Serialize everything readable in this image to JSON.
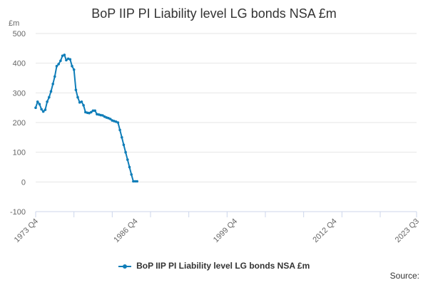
{
  "chart_data": {
    "type": "line",
    "title": "BoP IIP PI Liability level LG bonds NSA £m",
    "ylabel": "£m",
    "ylim": [
      -100,
      500
    ],
    "yticks": [
      "500",
      "400",
      "300",
      "200",
      "100",
      "0",
      "-100"
    ],
    "xticks": [
      "1973 Q4",
      "1986 Q4",
      "1999 Q4",
      "2012 Q4",
      "2023 Q3"
    ],
    "grid": true,
    "legend_position": "bottom",
    "series": [
      {
        "name": "BoP IIP PI Liability level LG bonds NSA £m",
        "color": "#0f7db8",
        "x": [
          "1973 Q4",
          "1974 Q1",
          "1974 Q2",
          "1974 Q3",
          "1974 Q4",
          "1975 Q1",
          "1975 Q2",
          "1975 Q3",
          "1975 Q4",
          "1976 Q1",
          "1976 Q2",
          "1976 Q3",
          "1976 Q4",
          "1977 Q1",
          "1977 Q2",
          "1977 Q3",
          "1977 Q4",
          "1978 Q1",
          "1978 Q2",
          "1978 Q3",
          "1978 Q4",
          "1979 Q1",
          "1979 Q2",
          "1979 Q3",
          "1979 Q4",
          "1980 Q1",
          "1980 Q2",
          "1980 Q3",
          "1980 Q4",
          "1981 Q1",
          "1981 Q2",
          "1981 Q3",
          "1981 Q4",
          "1982 Q1",
          "1982 Q2",
          "1982 Q3",
          "1982 Q4",
          "1983 Q1",
          "1983 Q2",
          "1983 Q3",
          "1983 Q4",
          "1984 Q1",
          "1984 Q2",
          "1984 Q3",
          "1984 Q4",
          "1985 Q1",
          "1985 Q2",
          "1985 Q3",
          "1985 Q4",
          "1986 Q1",
          "1986 Q2",
          "1986 Q3",
          "1986 Q4",
          "1987 Q1"
        ],
        "values": [
          250,
          270,
          262,
          245,
          237,
          243,
          270,
          285,
          305,
          330,
          355,
          390,
          397,
          408,
          425,
          428,
          410,
          415,
          413,
          390,
          378,
          310,
          285,
          268,
          270,
          258,
          235,
          233,
          232,
          235,
          240,
          240,
          228,
          227,
          225,
          224,
          220,
          217,
          215,
          212,
          207,
          205,
          203,
          200,
          175,
          150,
          125,
          100,
          75,
          50,
          25,
          2,
          2,
          2
        ]
      }
    ]
  },
  "source_label": "Source:"
}
